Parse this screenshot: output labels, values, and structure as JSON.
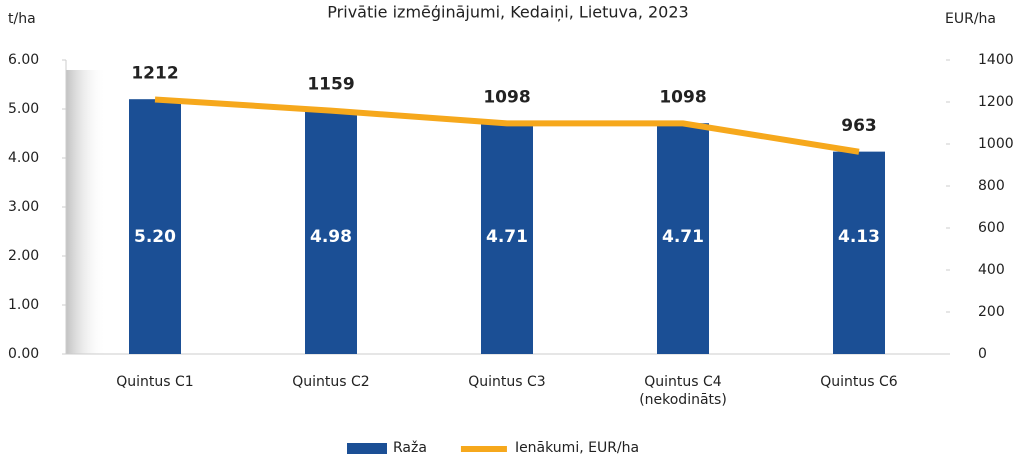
{
  "chart_data": {
    "type": "bar",
    "title": "Privātie izmēģinājumi, Kedaiņi, Lietuva, 2023",
    "y_label": "t/ha",
    "y2_label": "EUR/ha",
    "categories": [
      "Quintus C1",
      "Quintus C2",
      "Quintus C3",
      "Quintus C4\n(nekodināts)",
      "Quintus C6"
    ],
    "series": [
      {
        "name": "Raža",
        "type": "bar",
        "color": "#1b4f95",
        "values": [
          5.2,
          4.98,
          4.71,
          4.71,
          4.13
        ],
        "value_labels": [
          "5.20",
          "4.98",
          "4.71",
          "4.71",
          "4.13"
        ]
      },
      {
        "name": "Ienākumi, EUR/ha",
        "type": "line",
        "axis": "y2",
        "color": "#f6a81c",
        "values": [
          1212,
          1159,
          1098,
          1098,
          963
        ]
      }
    ],
    "ylim": [
      0,
      6
    ],
    "yticks": [
      {
        "value": 0,
        "label": "0.00"
      },
      {
        "value": 1,
        "label": "1.00"
      },
      {
        "value": 2,
        "label": "2.00"
      },
      {
        "value": 3,
        "label": "3.00"
      },
      {
        "value": 4,
        "label": "4.00"
      },
      {
        "value": 5,
        "label": "5.00"
      },
      {
        "value": 6,
        "label": "6.00"
      }
    ],
    "y2lim": [
      0,
      1400
    ],
    "y2ticks": [
      0,
      200,
      400,
      600,
      800,
      1000,
      1200,
      1400
    ],
    "grid": false,
    "legend": "bottom"
  }
}
